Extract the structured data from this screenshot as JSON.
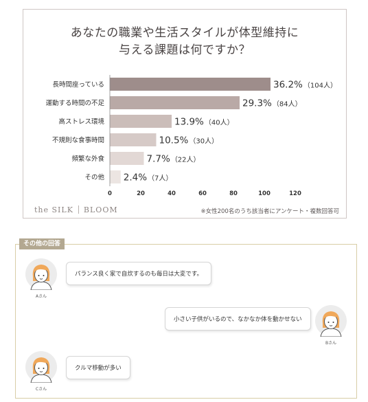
{
  "title_lines": [
    "あなたの職業や生活スタイルが体型維持に",
    "与える課題は何ですか？"
  ],
  "brand": {
    "left": "the SILK",
    "right": "BLOOM"
  },
  "note": "※女性200名のうち該当者にアンケート・複数回答可",
  "chart_data": {
    "type": "bar",
    "orientation": "horizontal",
    "title": "あなたの職業や生活スタイルが体型維持に与える課題は何ですか？",
    "categories": [
      "長時間座っている",
      "運動する時間の不足",
      "高ストレス環境",
      "不規則な食事時間",
      "頻繁な外食",
      "その他"
    ],
    "values": [
      36.2,
      29.3,
      13.9,
      10.5,
      7.7,
      2.4
    ],
    "axis_values": [
      104,
      84,
      40,
      30,
      22,
      7
    ],
    "value_labels": [
      "36.2%",
      "29.3%",
      "13.9%",
      "10.5%",
      "7.7%",
      "2.4%"
    ],
    "count_labels": [
      "（104人）",
      "（84人）",
      "（40人）",
      "（30人）",
      "（22人）",
      "（7人）"
    ],
    "xticks": [
      "0",
      "20",
      "40",
      "60",
      "80",
      "100",
      "120"
    ],
    "xlim": [
      0,
      120
    ],
    "bar_colors": [
      "#9e8d8b",
      "#b9a9a6",
      "#cbbdb9",
      "#d6cac7",
      "#e2d8d5",
      "#ece5e2"
    ],
    "grid": false
  },
  "answers": {
    "badge": "その他の回答",
    "items": [
      {
        "caption": "Aさん",
        "text": "パランス良く家で自炊するのも毎日は大変です。"
      },
      {
        "caption": "Bさん",
        "text": "小さい子供がいるので、なかなか体を動かせない"
      },
      {
        "caption": "Cさん",
        "text": "クルマ移動が多い"
      }
    ]
  },
  "icons": [
    "woman-avatar-icon"
  ],
  "colors": {
    "frame": "#cfc6c4",
    "answers_frame": "#d8cda6",
    "badge": "#b3a891",
    "avatar_bg": "#ececec",
    "hair": "#f0a85a"
  }
}
